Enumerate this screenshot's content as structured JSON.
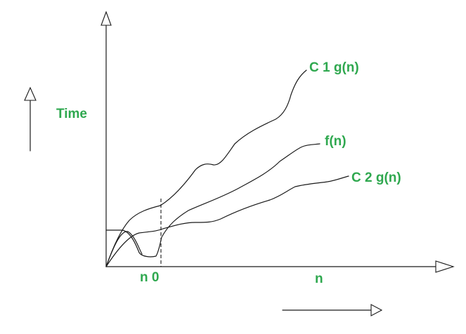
{
  "labels": {
    "time": "Time",
    "upper_bound": "C 1 g(n)",
    "function": "f(n)",
    "lower_bound": "C 2 g(n)",
    "threshold": "n 0",
    "input": "n"
  },
  "colors": {
    "label": "#2fa84f",
    "line": "#1a1a1a"
  }
}
